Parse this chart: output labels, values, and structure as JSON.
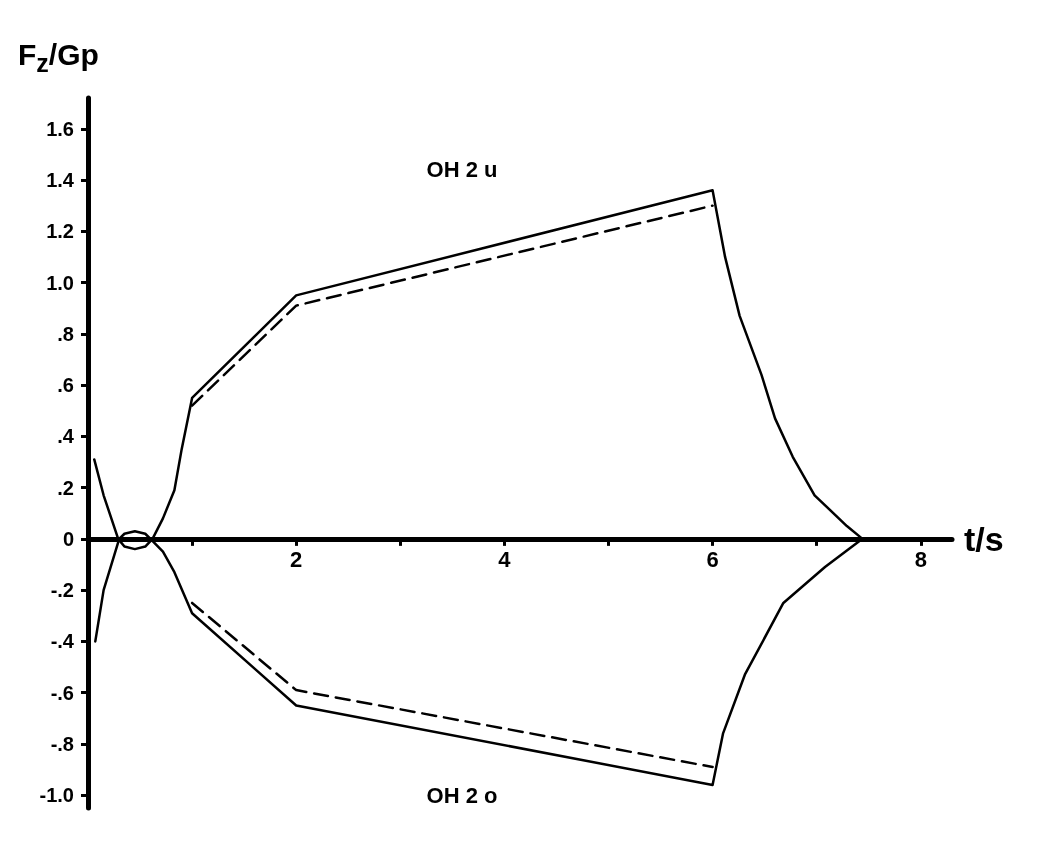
{
  "chart_data": {
    "type": "line",
    "xlabel": "t/s",
    "ylabel": "F$_{z}$/Gp",
    "xlim": [
      0,
      8.3
    ],
    "ylim": [
      -1.05,
      1.72
    ],
    "xticks": [
      {
        "value": 1,
        "label": null
      },
      2,
      {
        "value": 3,
        "label": null
      },
      4,
      {
        "value": 5,
        "label": null
      },
      6,
      {
        "value": 7,
        "label": null
      },
      8
    ],
    "yticks": [
      {
        "value": -1.0,
        "label": "-1.0"
      },
      {
        "value": -0.8,
        "label": "-.8"
      },
      {
        "value": -0.6,
        "label": "-.6"
      },
      {
        "value": -0.4,
        "label": "-.4"
      },
      {
        "value": -0.2,
        "label": "-.2"
      },
      0,
      {
        "value": 0.2,
        "label": ".2"
      },
      {
        "value": 0.4,
        "label": ".4"
      },
      {
        "value": 0.6,
        "label": ".6"
      },
      {
        "value": 0.8,
        "label": ".8"
      },
      {
        "value": 1.0,
        "label": "1.0"
      },
      1.2,
      1.4,
      1.6
    ],
    "grid": false,
    "marker": "none",
    "legend": false,
    "series": [
      {
        "name": "OH 2 u",
        "color": "#000000",
        "line_style": "solid",
        "x": [
          0.06,
          0.15,
          0.29,
          0.35,
          0.45,
          0.55,
          0.62,
          0.72,
          0.83,
          0.9,
          1,
          2,
          6,
          6.12,
          6.26,
          6.47,
          6.6,
          6.77,
          6.98,
          7.29,
          7.44
        ],
        "values": [
          0.31,
          0.17,
          0,
          -0.03,
          -0.04,
          -0.03,
          0,
          0.08,
          0.19,
          0.35,
          0.55,
          0.95,
          1.36,
          1.1,
          0.87,
          0.64,
          0.47,
          0.32,
          0.17,
          0.05,
          0
        ]
      },
      {
        "color": "#000000",
        "line_style": "dashed",
        "x": [
          1,
          2,
          6
        ],
        "values": [
          0.52,
          0.91,
          1.3
        ]
      },
      {
        "name": "OH 2 o",
        "color": "#000000",
        "line_style": "solid",
        "x": [
          0.07,
          0.15,
          0.3,
          0.35,
          0.45,
          0.55,
          0.6,
          0.72,
          0.83,
          1,
          2,
          6,
          6.1,
          6.31,
          6.68,
          7.08,
          7.44
        ],
        "values": [
          -0.4,
          -0.2,
          0,
          0.02,
          0.03,
          0.02,
          0,
          -0.05,
          -0.13,
          -0.29,
          -0.65,
          -0.96,
          -0.76,
          -0.53,
          -0.25,
          -0.11,
          0
        ]
      },
      {
        "color": "#000000",
        "line_style": "dashed",
        "x": [
          1,
          2,
          6
        ],
        "values": [
          -0.25,
          -0.59,
          -0.89
        ]
      }
    ]
  }
}
